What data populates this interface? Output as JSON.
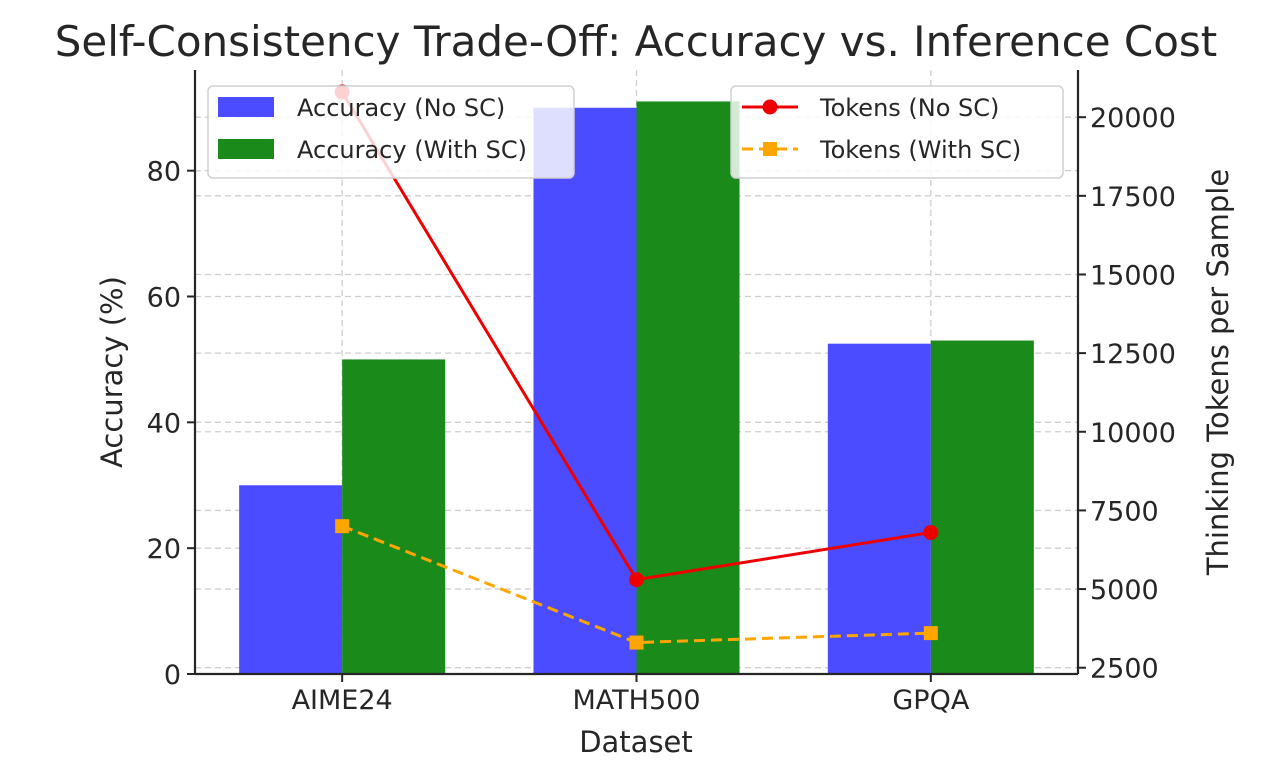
{
  "chart_data": {
    "type": "bar",
    "title": "Self-Consistency Trade-Off: Accuracy vs. Inference Cost",
    "xlabel": "Dataset",
    "ylabel": "Accuracy (%)",
    "y2label": "Thinking Tokens per Sample",
    "categories": [
      "AIME24",
      "MATH500",
      "GPQA"
    ],
    "ylim": [
      0,
      96
    ],
    "y2lim": [
      2300,
      21500
    ],
    "yticks": [
      0,
      20,
      40,
      60,
      80
    ],
    "y2ticks": [
      2500,
      5000,
      7500,
      10000,
      12500,
      15000,
      17500,
      20000
    ],
    "grid": true,
    "bar_series": [
      {
        "name": "Accuracy (No SC)",
        "values": [
          30,
          90,
          52.5
        ],
        "color": "#4b4bff"
      },
      {
        "name": "Accuracy (With SC)",
        "values": [
          50,
          91,
          53
        ],
        "color": "#1a8a1a"
      }
    ],
    "line_series": [
      {
        "name": "Tokens (No SC)",
        "values": [
          20800,
          5300,
          6800
        ],
        "color": "#ee0000",
        "marker": "circle",
        "dashed": false
      },
      {
        "name": "Tokens (With SC)",
        "values": [
          7000,
          3300,
          3600
        ],
        "color": "#ffa500",
        "marker": "square",
        "dashed": true
      }
    ],
    "legend_bars_placement": "upper-left",
    "legend_lines_placement": "upper-right"
  }
}
